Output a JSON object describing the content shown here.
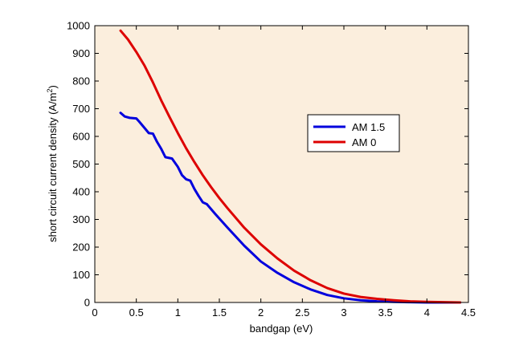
{
  "chart_data": {
    "type": "line",
    "title": "",
    "xlabel": "bandgap (eV)",
    "ylabel": "short circuit current density (A/m",
    "ylabel_sup": "2",
    "ylabel_tail": ")",
    "xlim": [
      0,
      4.5
    ],
    "ylim": [
      0,
      1000
    ],
    "xticks": [
      0,
      0.5,
      1,
      1.5,
      2,
      2.5,
      3,
      3.5,
      4,
      4.5
    ],
    "xtick_labels": [
      "0",
      "0.5",
      "1",
      "1.5",
      "2",
      "2.5",
      "3",
      "3.5",
      "4",
      "4.5"
    ],
    "yticks": [
      0,
      100,
      200,
      300,
      400,
      500,
      600,
      700,
      800,
      900,
      1000
    ],
    "ytick_labels": [
      "0",
      "100",
      "200",
      "300",
      "400",
      "500",
      "600",
      "700",
      "800",
      "900",
      "1000"
    ],
    "grid": false,
    "legend_position": "upper-right",
    "plot_background": "#fbeedd",
    "series": [
      {
        "name": "AM 1.5",
        "color": "#0000dd",
        "x": [
          0.31,
          0.36,
          0.42,
          0.5,
          0.53,
          0.6,
          0.65,
          0.7,
          0.75,
          0.8,
          0.85,
          0.93,
          1.0,
          1.05,
          1.1,
          1.15,
          1.2,
          1.25,
          1.3,
          1.35,
          1.45,
          1.6,
          1.8,
          2.0,
          2.2,
          2.4,
          2.6,
          2.8,
          3.0,
          3.2,
          3.4,
          3.6,
          3.8,
          4.0,
          4.2,
          4.4
        ],
        "y": [
          685,
          672,
          667,
          665,
          655,
          630,
          612,
          610,
          580,
          555,
          525,
          520,
          490,
          460,
          445,
          440,
          410,
          385,
          362,
          355,
          320,
          270,
          205,
          148,
          107,
          73,
          47,
          27,
          15,
          8,
          4,
          2,
          1,
          0,
          0,
          0
        ]
      },
      {
        "name": "AM 0",
        "color": "#dd0000",
        "x": [
          0.31,
          0.4,
          0.5,
          0.6,
          0.7,
          0.8,
          0.9,
          1.0,
          1.1,
          1.2,
          1.3,
          1.4,
          1.5,
          1.6,
          1.8,
          2.0,
          2.2,
          2.4,
          2.6,
          2.8,
          3.0,
          3.2,
          3.4,
          3.6,
          3.8,
          4.0,
          4.2,
          4.4
        ],
        "y": [
          982,
          950,
          905,
          855,
          795,
          730,
          670,
          612,
          557,
          507,
          460,
          417,
          377,
          340,
          270,
          210,
          159,
          115,
          80,
          52,
          32,
          20,
          13,
          8,
          4,
          2,
          1,
          0
        ]
      }
    ]
  }
}
